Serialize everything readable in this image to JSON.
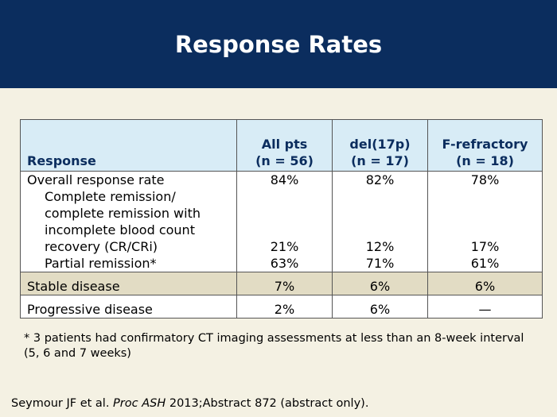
{
  "slide": {
    "title": "Response Rates"
  },
  "table": {
    "headers": {
      "response": "Response",
      "col1_line1": "All pts",
      "col1_line2": "(n = 56)",
      "col2_line1": "del(17p)",
      "col2_line2": "(n = 17)",
      "col3_line1": "F-refractory",
      "col3_line2": "(n = 18)"
    },
    "overall": {
      "label": "Overall response rate",
      "values": [
        "84%",
        "82%",
        "78%"
      ]
    },
    "complete": {
      "label_lines": [
        "Complete remission/",
        "complete remission with",
        "incomplete blood count",
        "recovery (CR/CRi)"
      ],
      "values": [
        "21%",
        "12%",
        "17%"
      ]
    },
    "partial": {
      "label": "Partial remission*",
      "values": [
        "63%",
        "71%",
        "61%"
      ]
    },
    "stable": {
      "label": "Stable disease",
      "values": [
        "7%",
        "6%",
        "6%"
      ]
    },
    "progressive": {
      "label": "Progressive disease",
      "values": [
        "2%",
        "6%",
        "—"
      ]
    }
  },
  "footnote": "* 3 patients had confirmatory CT imaging assessments at less than an 8-week interval (5, 6 and 7 weeks)",
  "citation": {
    "prefix": "Seymour JF et al. ",
    "journal": "Proc ASH",
    "suffix": " 2013;Abstract 872 (abstract only)."
  },
  "colors": {
    "header_bg": "#0b2d5e",
    "table_header_bg": "#d8ecf6",
    "stable_row_bg": "#e2dcc4",
    "slide_bg": "#f4f1e3"
  }
}
